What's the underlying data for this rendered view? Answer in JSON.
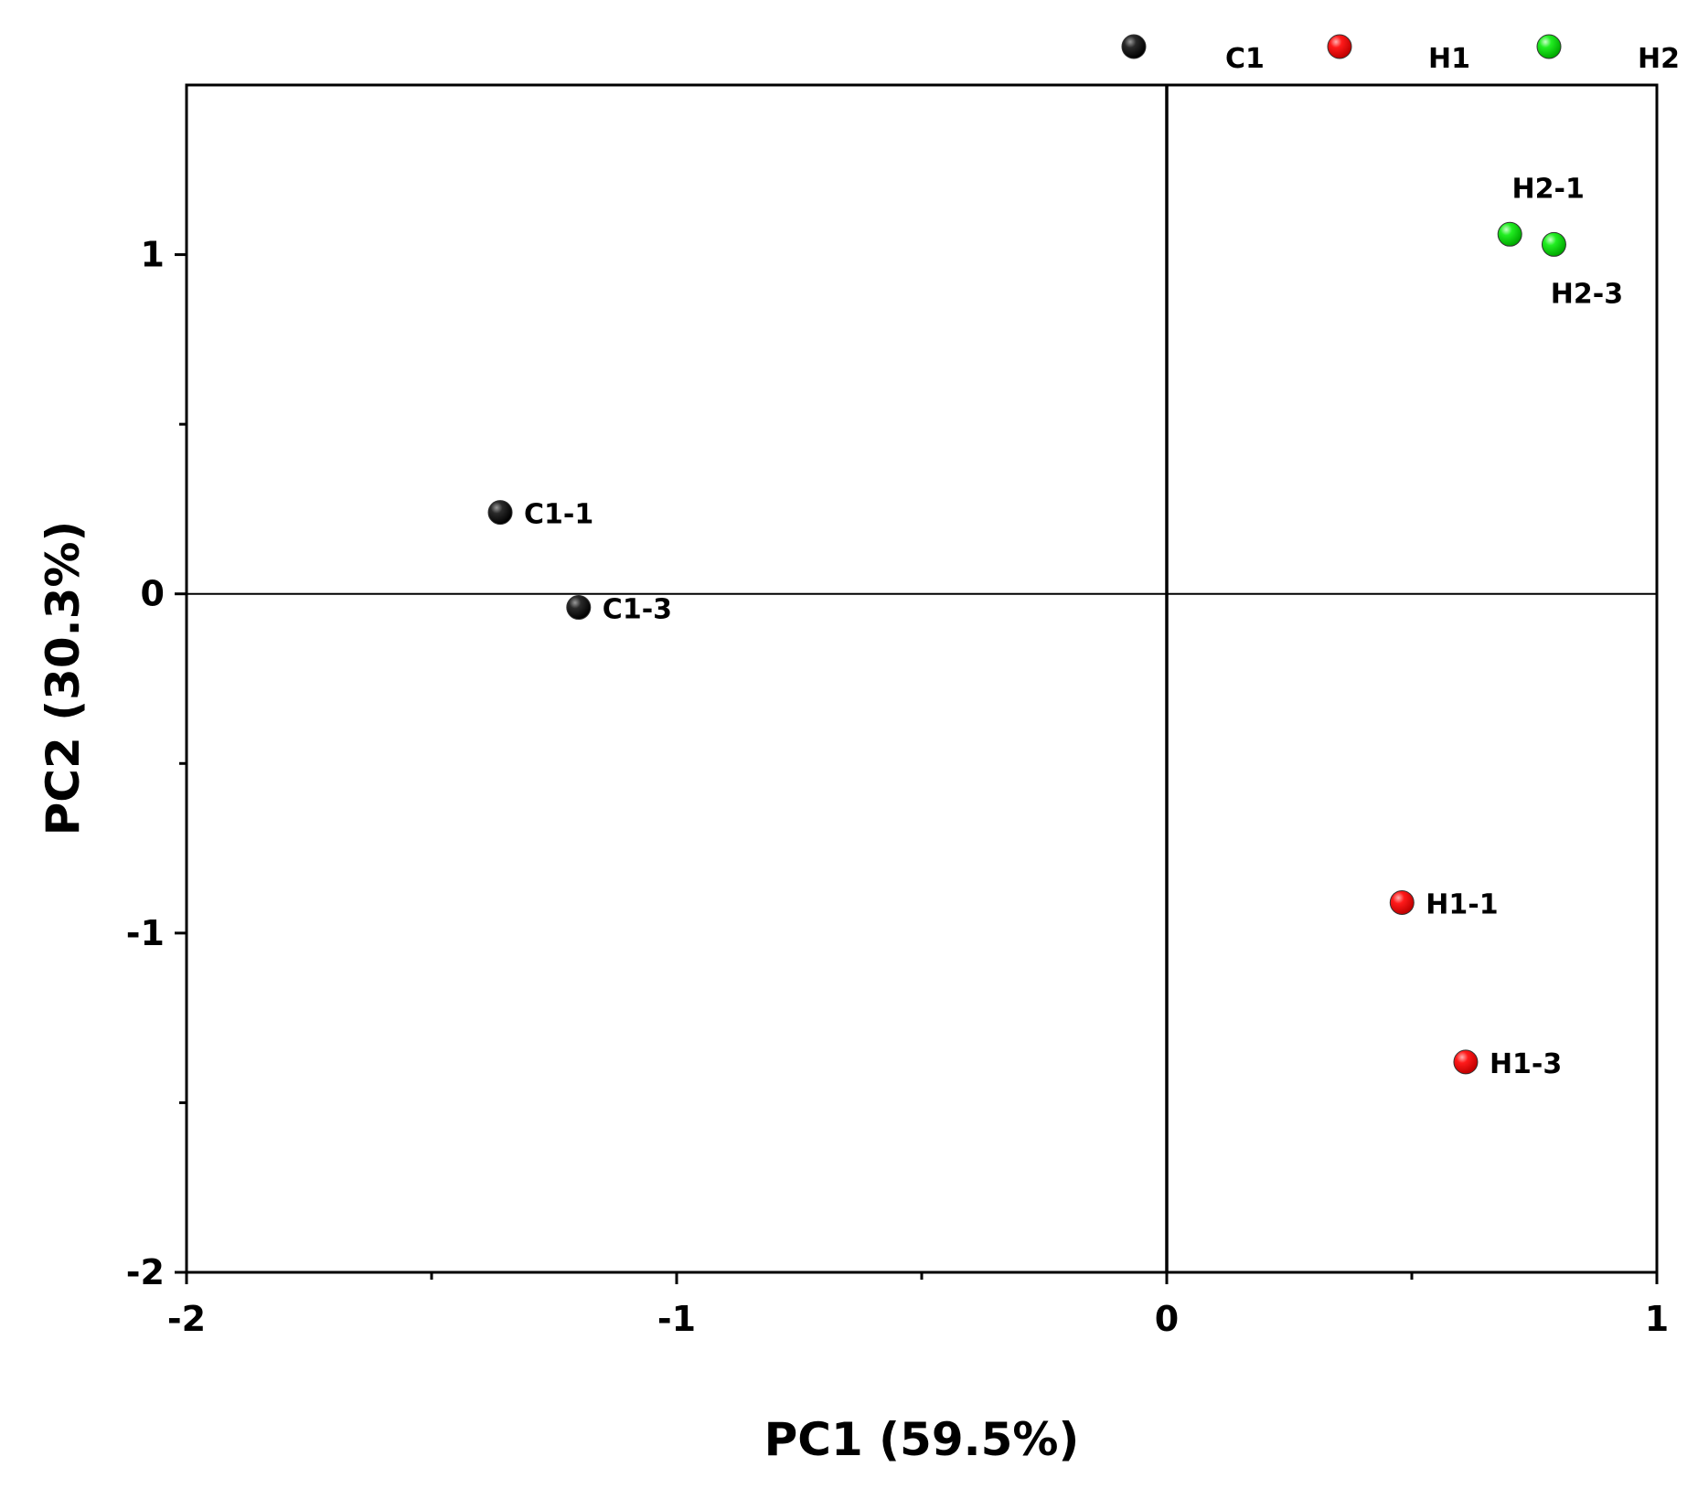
{
  "chart_data": {
    "type": "scatter",
    "xlabel": "PC1 (59.5%)",
    "ylabel": "PC2 (30.3%)",
    "xlim": [
      -2,
      1
    ],
    "ylim": [
      -2,
      1.5
    ],
    "xticks": [
      -2,
      -1,
      0,
      1
    ],
    "xtick_labels": [
      "-2",
      "-1",
      "0",
      "1"
    ],
    "xminor": [
      -1.5,
      -0.5,
      0.5
    ],
    "yticks": [
      -2,
      -1,
      0,
      1
    ],
    "ytick_labels": [
      "-2",
      "-1",
      "0",
      "1"
    ],
    "yminor": [
      -1.5,
      -0.5,
      0.5
    ],
    "reference_lines": {
      "x": 0,
      "y": 0
    },
    "grid": false,
    "legend_position": "top",
    "series": [
      {
        "name": "C1",
        "color": "#000000",
        "points": [
          {
            "x": -1.36,
            "y": 0.24,
            "label": "C1-1"
          },
          {
            "x": -1.2,
            "y": -0.04,
            "label": "C1-3"
          }
        ]
      },
      {
        "name": "H1",
        "color": "#ff0000",
        "points": [
          {
            "x": 0.48,
            "y": -0.91,
            "label": "H1-1"
          },
          {
            "x": 0.61,
            "y": -1.38,
            "label": "H1-3"
          }
        ]
      },
      {
        "name": "H2",
        "color": "#00dd00",
        "points": [
          {
            "x": 0.7,
            "y": 1.06,
            "label": "H2-1"
          },
          {
            "x": 0.79,
            "y": 1.03,
            "label": "H2-3"
          }
        ]
      }
    ]
  }
}
